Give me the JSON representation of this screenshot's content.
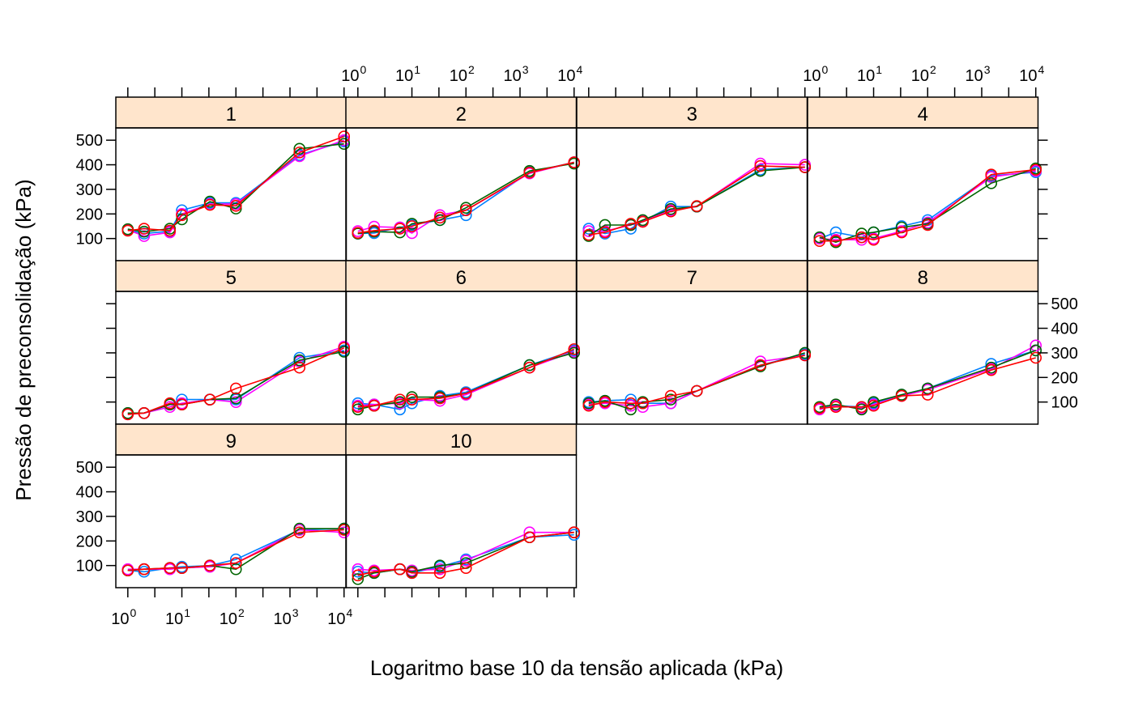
{
  "chart_data": {
    "type": "line",
    "xlabel": "Logaritmo base 10 da tensão aplicada (kPa)",
    "ylabel": "Pressão de preconsolidação (kPa)",
    "x_scale": "log10",
    "x_tick_base": "10",
    "x_tick_exponents": [
      "0",
      "1",
      "2",
      "3",
      "4"
    ],
    "x_range": [
      0.6,
      11000
    ],
    "y_ticks": [
      "100",
      "200",
      "300",
      "400",
      "500"
    ],
    "y_range": [
      10,
      550
    ],
    "x": [
      1,
      2,
      6,
      10,
      33,
      100,
      1500,
      10000
    ],
    "series_colors": [
      "#0080ff",
      "#ff00ff",
      "#006400",
      "#ff0000"
    ],
    "strip_color": "#ffe5cc",
    "grid": false,
    "panels": [
      {
        "label": "1",
        "series": [
          {
            "values": [
              135,
              120,
              130,
              215,
              245,
              245,
              440,
              495
            ]
          },
          {
            "values": [
              135,
              110,
              125,
              200,
              240,
              240,
              435,
              500
            ]
          },
          {
            "values": [
              138,
              128,
              140,
              178,
              250,
              222,
              465,
              485
            ]
          },
          {
            "values": [
              132,
              140,
              132,
              195,
              237,
              233,
              450,
              515
            ]
          }
        ]
      },
      {
        "label": "2",
        "series": [
          {
            "values": [
              120,
              122,
              145,
              155,
              175,
              195,
              370,
              410
            ]
          },
          {
            "values": [
              130,
              148,
              145,
              122,
              195,
              215,
              365,
              410
            ]
          },
          {
            "values": [
              120,
              128,
              125,
              160,
              175,
              225,
              375,
              405
            ]
          },
          {
            "values": [
              123,
              132,
              140,
              150,
              185,
              215,
              368,
              410
            ]
          }
        ]
      },
      {
        "label": "3",
        "series": [
          {
            "values": [
              140,
              120,
              140,
              170,
              230,
              230,
              380,
              390
            ]
          },
          {
            "values": [
              130,
              130,
              155,
              170,
              215,
              230,
              405,
              400
            ]
          },
          {
            "values": [
              110,
              155,
              155,
              175,
              220,
              230,
              375,
              390
            ]
          },
          {
            "values": [
              115,
              125,
              160,
              168,
              210,
              232,
              395,
              390
            ]
          }
        ]
      },
      {
        "label": "4",
        "series": [
          {
            "values": [
              100,
              125,
              105,
              125,
              150,
              175,
              355,
              370
            ]
          },
          {
            "values": [
              100,
              95,
              95,
              100,
              130,
              165,
              350,
              375
            ]
          },
          {
            "values": [
              105,
              85,
              120,
              125,
              145,
              160,
              325,
              385
            ]
          },
          {
            "values": [
              90,
              90,
              105,
              95,
              125,
              155,
              360,
              380
            ]
          }
        ]
      },
      {
        "label": "5",
        "series": [
          {
            "values": [
              55,
              55,
              90,
              110,
              110,
              110,
              280,
              310
            ]
          },
          {
            "values": [
              50,
              55,
              80,
              95,
              110,
              100,
              265,
              325
            ]
          },
          {
            "values": [
              55,
              55,
              90,
              90,
              110,
              115,
              270,
              305
            ]
          },
          {
            "values": [
              50,
              55,
              95,
              90,
              110,
              155,
              240,
              320
            ]
          }
        ]
      },
      {
        "label": "6",
        "series": [
          {
            "values": [
              95,
              90,
              70,
              95,
              125,
              140,
              250,
              310
            ]
          },
          {
            "values": [
              85,
              90,
              95,
              110,
              105,
              130,
              240,
              305
            ]
          },
          {
            "values": [
              70,
              85,
              100,
              120,
              120,
              135,
              250,
              300
            ]
          },
          {
            "values": [
              80,
              85,
              110,
              110,
              115,
              135,
              240,
              315
            ]
          }
        ]
      },
      {
        "label": "7",
        "series": [
          {
            "values": [
              100,
              105,
              110,
              95,
              95,
              145,
              250,
              295
            ]
          },
          {
            "values": [
              90,
              95,
              85,
              80,
              95,
              145,
              265,
              290
            ]
          },
          {
            "values": [
              95,
              105,
              70,
              100,
              110,
              145,
              245,
              300
            ]
          },
          {
            "values": [
              85,
              100,
              95,
              95,
              125,
              145,
              250,
              290
            ]
          }
        ]
      },
      {
        "label": "8",
        "series": [
          {
            "values": [
              75,
              85,
              80,
              95,
              130,
              155,
              255,
              310
            ]
          },
          {
            "values": [
              70,
              85,
              75,
              90,
              125,
              150,
              235,
              330
            ]
          },
          {
            "values": [
              80,
              90,
              70,
              100,
              130,
              155,
              240,
              310
            ]
          },
          {
            "values": [
              75,
              80,
              80,
              85,
              125,
              130,
              230,
              280
            ]
          }
        ]
      },
      {
        "label": "9",
        "series": [
          {
            "values": [
              80,
              75,
              90,
              95,
              100,
              125,
              245,
              250
            ]
          },
          {
            "values": [
              85,
              85,
              85,
              90,
              95,
              110,
              245,
              235
            ]
          },
          {
            "values": [
              80,
              85,
              90,
              90,
              100,
              85,
              250,
              250
            ]
          },
          {
            "values": [
              80,
              85,
              90,
              90,
              100,
              110,
              235,
              245
            ]
          }
        ]
      },
      {
        "label": "10",
        "series": [
          {
            "values": [
              75,
              70,
              85,
              70,
              95,
              125,
              215,
              225
            ]
          },
          {
            "values": [
              85,
              80,
              85,
              80,
              85,
              120,
              235,
              235
            ]
          },
          {
            "values": [
              45,
              70,
              85,
              75,
              100,
              110,
              215,
              235
            ]
          },
          {
            "values": [
              60,
              75,
              85,
              70,
              70,
              90,
              215,
              235
            ]
          }
        ]
      }
    ]
  }
}
